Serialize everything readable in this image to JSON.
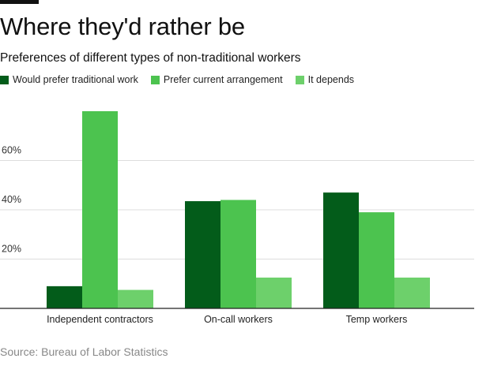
{
  "header": {
    "title": "Where they'd rather be",
    "subtitle": "Preferences of different types of non-traditional workers"
  },
  "footer": {
    "source": "Source: Bureau of Labor Statistics"
  },
  "colors": {
    "series_0": "#035c1a",
    "series_1": "#4cc34f",
    "series_2": "#6dd06b",
    "grid": "#dddddd",
    "axis": "#222222"
  },
  "chart_data": {
    "type": "bar",
    "title": "Where they'd rather be",
    "subtitle": "Preferences of different types of non-traditional workers",
    "categories": [
      "Independent contractors",
      "On-call workers",
      "Temp workers"
    ],
    "series": [
      {
        "name": "Would prefer traditional work",
        "values": [
          9,
          43.5,
          47
        ]
      },
      {
        "name": "Prefer current arrangement",
        "values": [
          80,
          44,
          39
        ]
      },
      {
        "name": "It depends",
        "values": [
          7.5,
          12.5,
          12.5
        ]
      }
    ],
    "y_ticks": [
      20,
      40,
      60
    ],
    "y_tick_labels": [
      "20%",
      "40%",
      "60%"
    ],
    "ylim": [
      0,
      80
    ],
    "grid": true,
    "legend_position": "top-left",
    "xlabel": "",
    "ylabel": ""
  }
}
